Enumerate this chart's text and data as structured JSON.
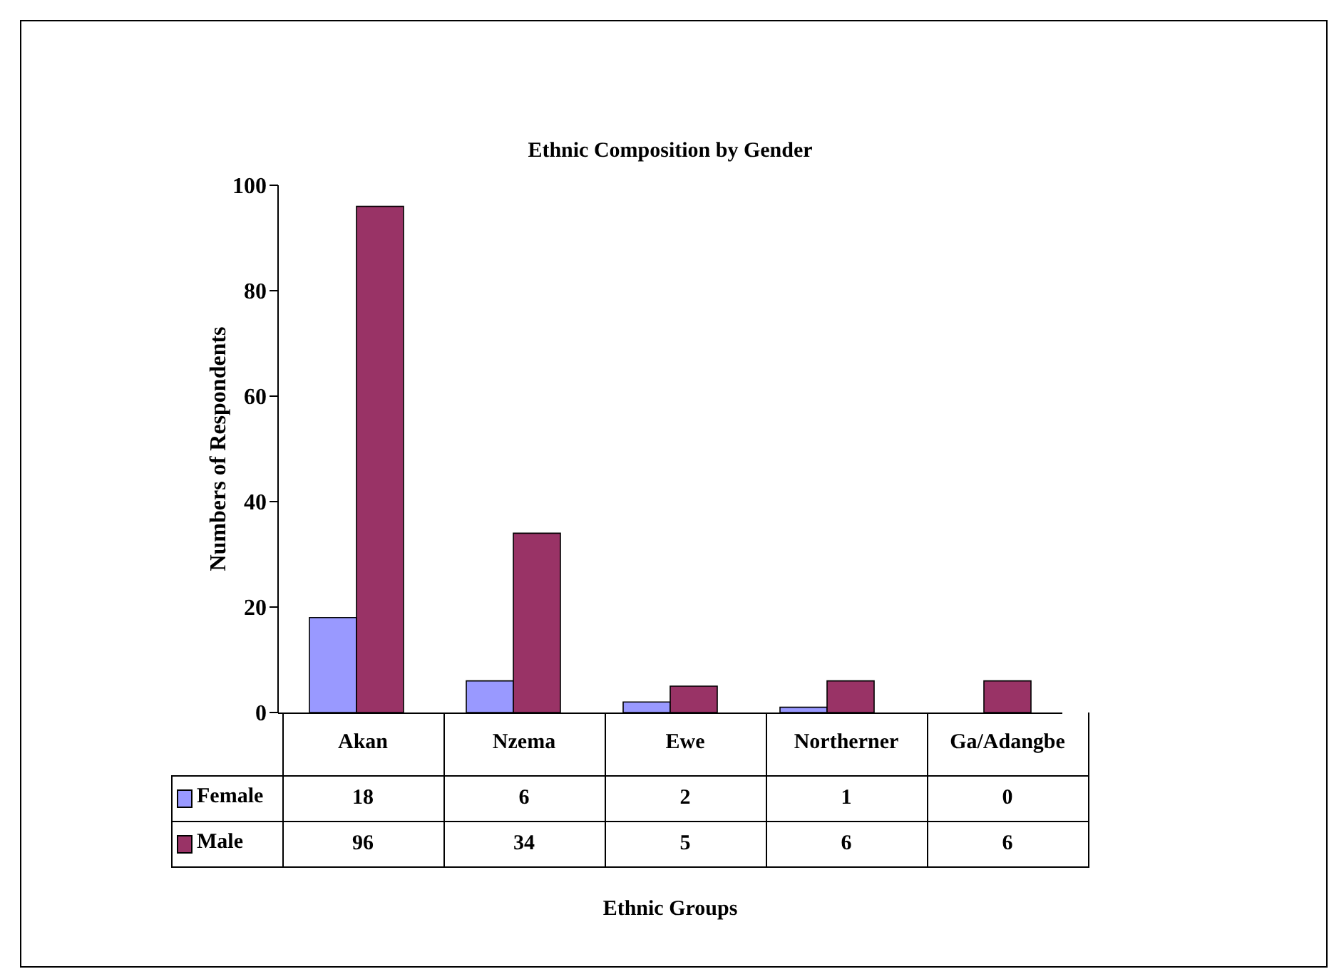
{
  "chart_data": {
    "type": "bar",
    "title": "Ethnic Composition by Gender",
    "annotations": [
      "Ethnic Groups"
    ],
    "ylabel": "Numbers of Respondents",
    "categories": [
      "Akan",
      "Nzema",
      "Ewe",
      "Northerner",
      "Ga/Adangbe"
    ],
    "series": [
      {
        "name": "Female",
        "color": "#9999ff",
        "values": [
          18,
          6,
          2,
          1,
          0
        ]
      },
      {
        "name": "Male",
        "color": "#993366",
        "values": [
          96,
          34,
          5,
          6,
          6
        ]
      }
    ],
    "ylim": [
      0,
      100
    ],
    "yticks": [
      0,
      20,
      40,
      60,
      80,
      100
    ],
    "grid": false,
    "legend": "bottom left",
    "data_labels": true
  }
}
